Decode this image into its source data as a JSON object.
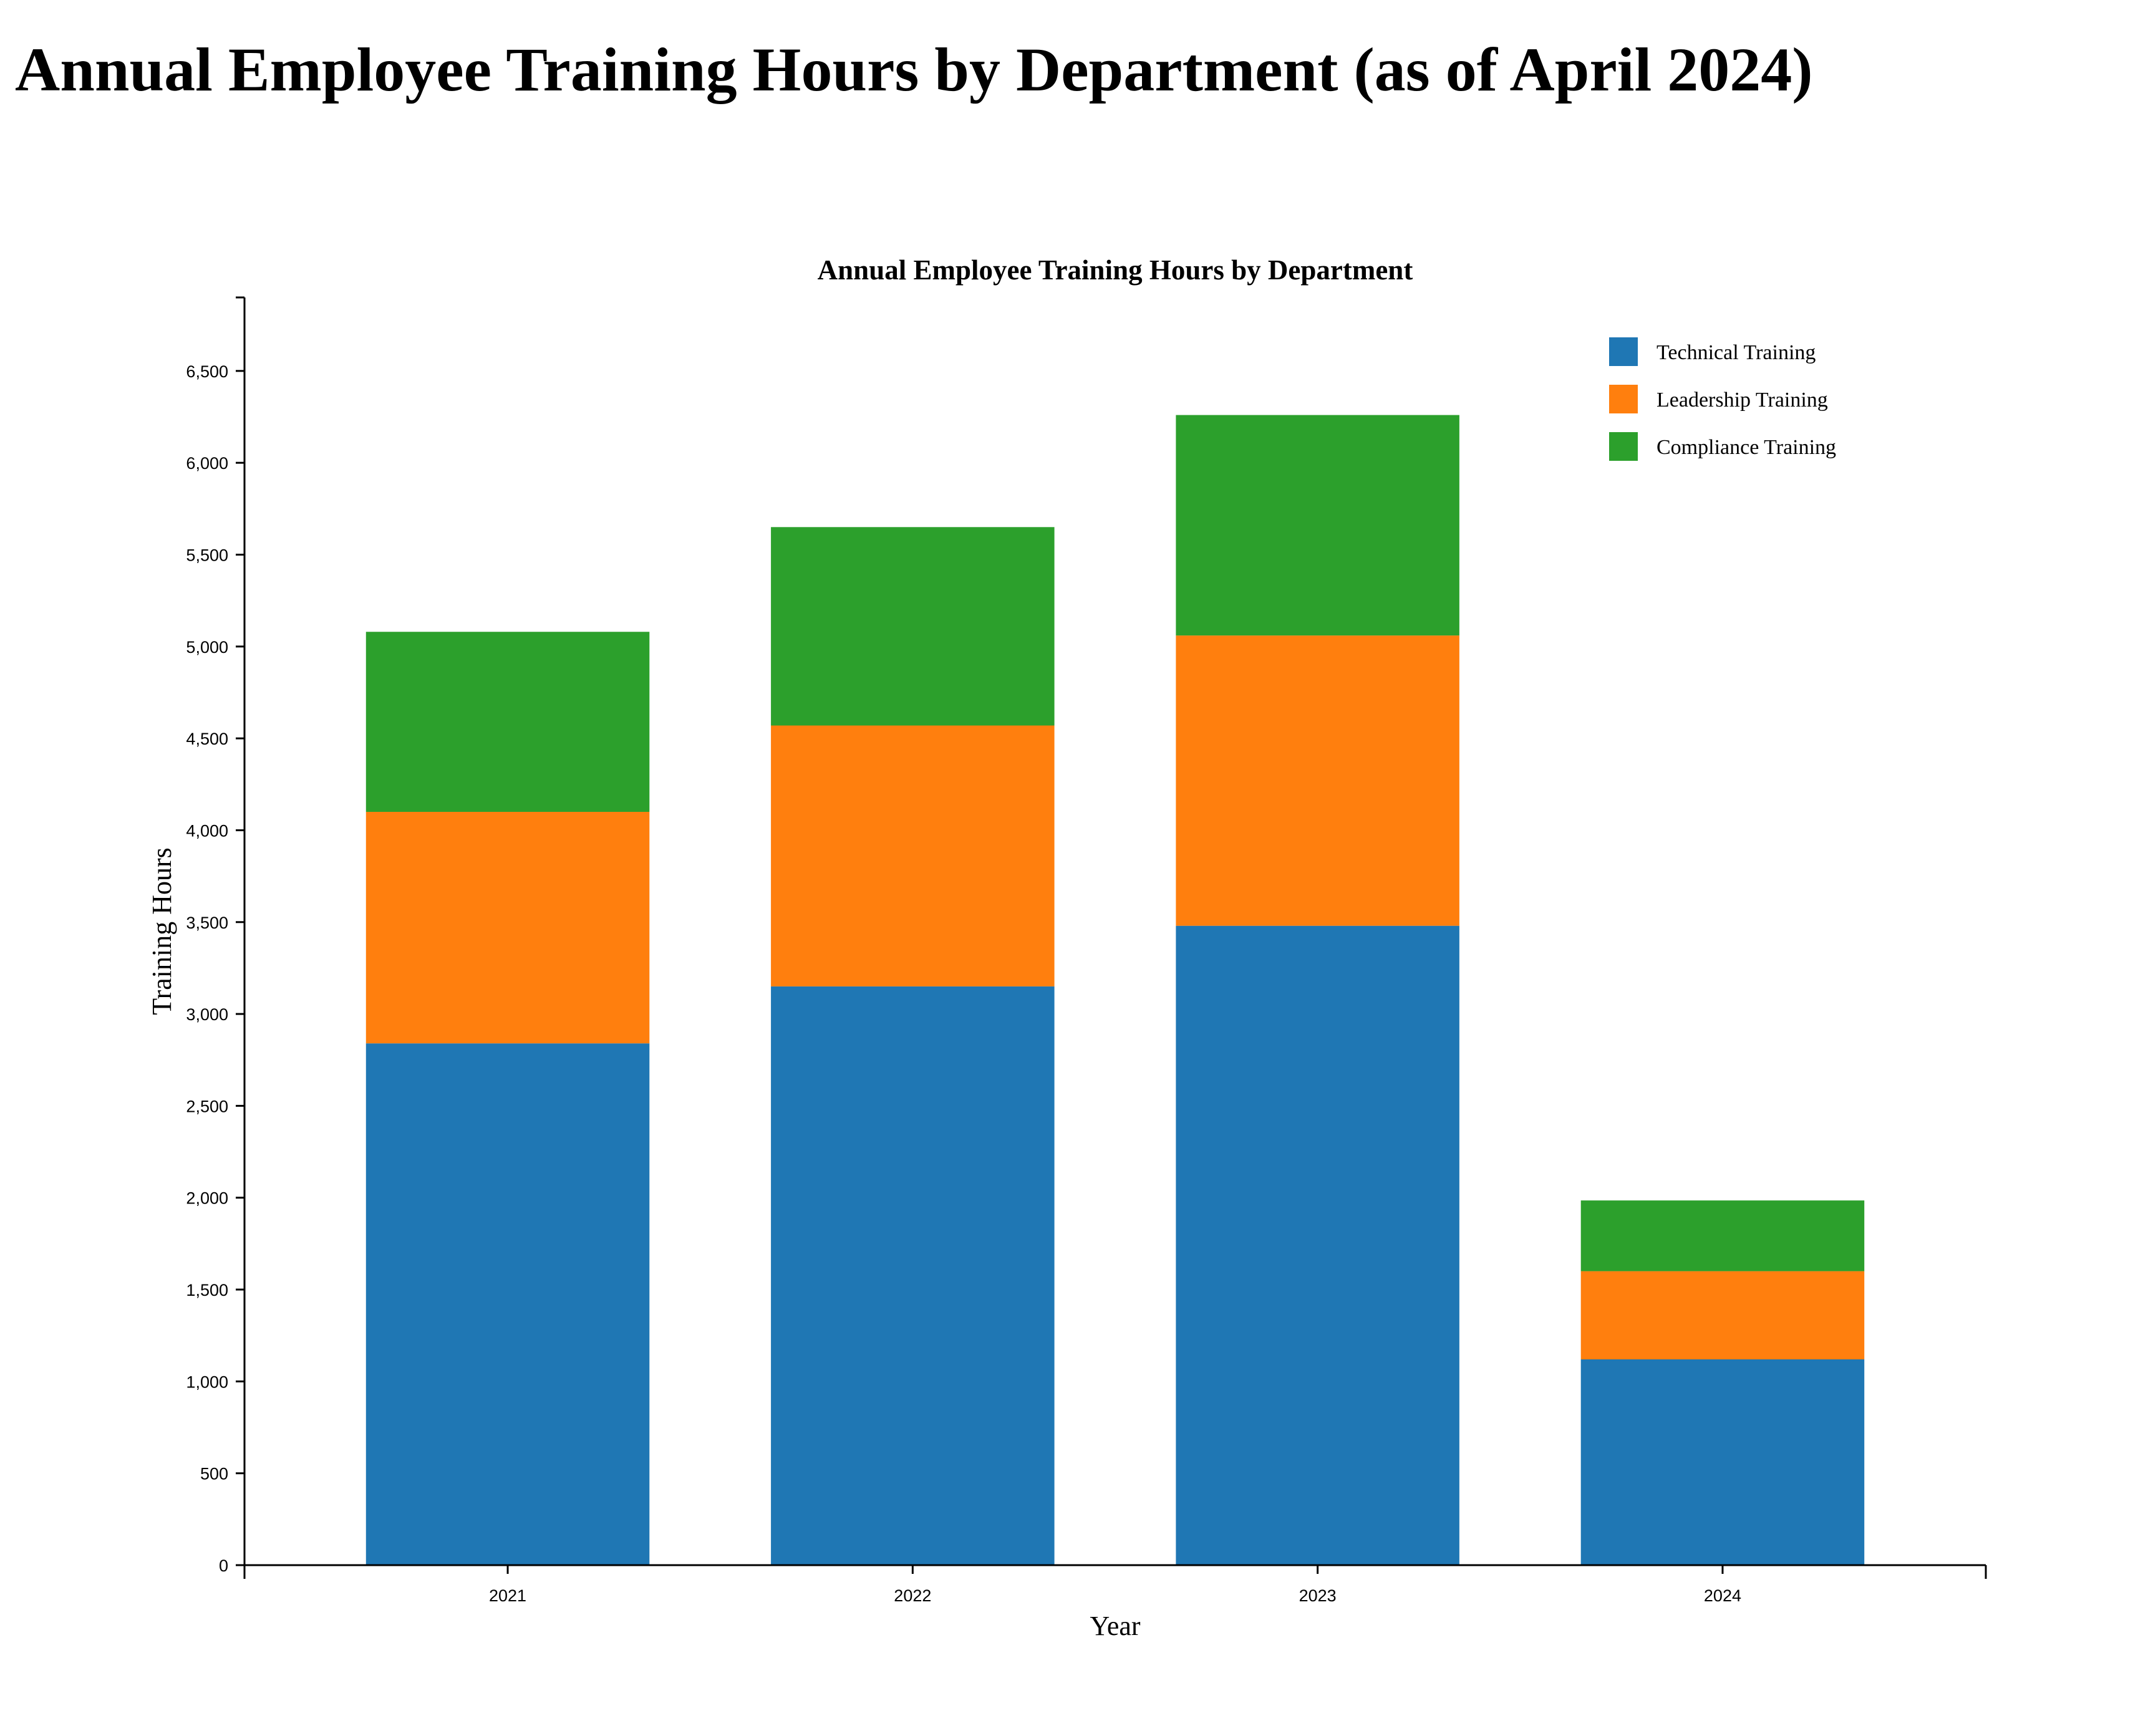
{
  "page": {
    "title": "Annual Employee Training Hours by Department (as of April 2024)"
  },
  "chart_data": {
    "type": "bar",
    "stacked": true,
    "title": "Annual Employee Training Hours by Department",
    "xlabel": "Year",
    "ylabel": "Training Hours",
    "categories": [
      "2021",
      "2022",
      "2023",
      "2024"
    ],
    "series": [
      {
        "name": "Technical Training",
        "color": "#1f77b4",
        "values": [
          2840,
          3150,
          3480,
          1120
        ]
      },
      {
        "name": "Leadership Training",
        "color": "#ff7f0e",
        "values": [
          1260,
          1420,
          1580,
          480
        ]
      },
      {
        "name": "Compliance Training",
        "color": "#2ca02c",
        "values": [
          980,
          1080,
          1200,
          385
        ]
      }
    ],
    "ylim": [
      0,
      6900
    ],
    "yticks": [
      0,
      500,
      1000,
      1500,
      2000,
      2500,
      3000,
      3500,
      4000,
      4500,
      5000,
      5500,
      6000,
      6500
    ],
    "ytick_labels": [
      "0",
      "500",
      "1,000",
      "1,500",
      "2,000",
      "2,500",
      "3,000",
      "3,500",
      "4,000",
      "4,500",
      "5,000",
      "5,500",
      "6,000",
      "6,500"
    ],
    "grid": false,
    "legend_position": "top-right"
  }
}
